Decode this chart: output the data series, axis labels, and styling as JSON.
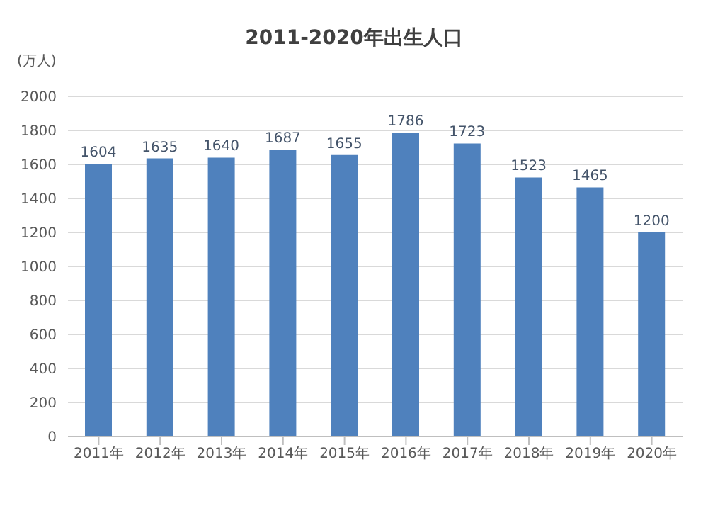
{
  "chart_data": {
    "type": "bar",
    "title": "2011-2020年出生人口",
    "ylabel": "(万人)",
    "categories": [
      "2011年",
      "2012年",
      "2013年",
      "2014年",
      "2015年",
      "2016年",
      "2017年",
      "2018年",
      "2019年",
      "2020年"
    ],
    "values": [
      1604,
      1635,
      1640,
      1687,
      1655,
      1786,
      1723,
      1523,
      1465,
      1200
    ],
    "color": "#4f81bd",
    "ylim": [
      0,
      2000
    ],
    "yticks": [
      0,
      200,
      400,
      600,
      800,
      1000,
      1200,
      1400,
      1600,
      1800,
      2000
    ],
    "grid": "y",
    "data_labels": true
  }
}
